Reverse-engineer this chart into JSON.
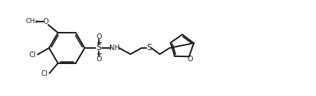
{
  "bg_color": "#ffffff",
  "line_color": "#1a1a1a",
  "lw": 1.5,
  "figsize": [
    4.52,
    1.38
  ],
  "dpi": 100,
  "xlim": [
    0,
    4.52
  ],
  "ylim": [
    0,
    1.38
  ]
}
